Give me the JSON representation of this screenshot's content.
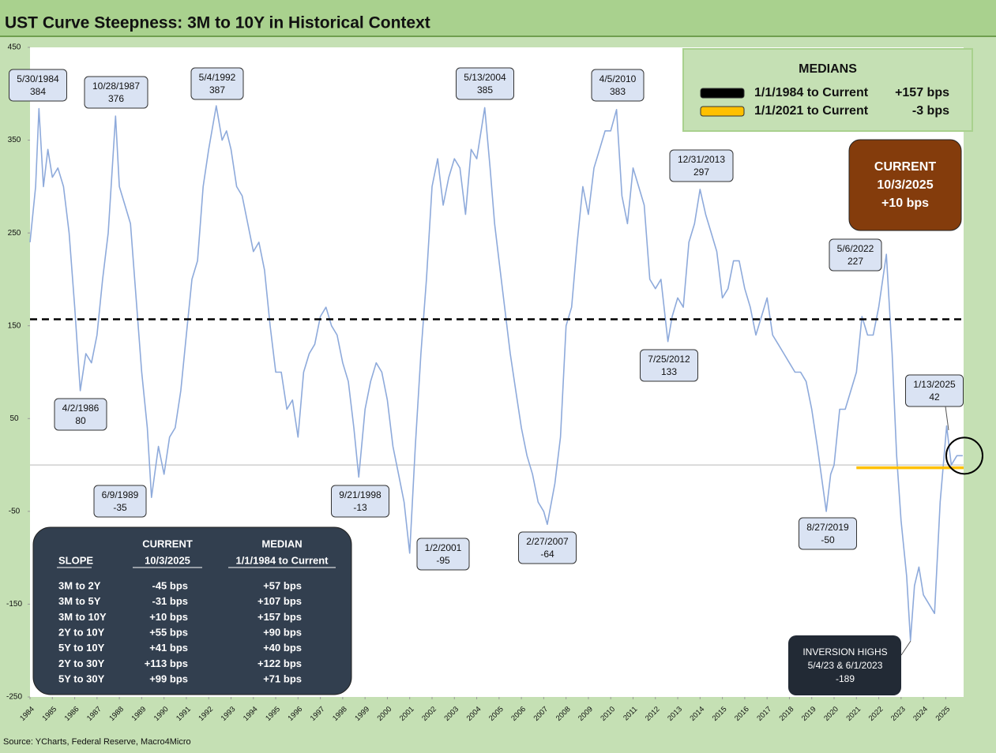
{
  "chart_data": {
    "type": "line",
    "title": "UST Curve Steepness: 3M to 10Y in Historical Context",
    "source": "Source: YCharts, Federal Reserve, Macro4Micro",
    "color": "#8eaadb",
    "ylim": [
      -250,
      450
    ],
    "yticks": [
      450,
      350,
      250,
      150,
      50,
      -50,
      -150,
      -250
    ],
    "xlim": [
      1984,
      2025.8
    ],
    "xticks": [
      1984,
      1985,
      1986,
      1987,
      1988,
      1989,
      1990,
      1991,
      1992,
      1993,
      1994,
      1995,
      1996,
      1997,
      1998,
      1999,
      2000,
      2001,
      2002,
      2003,
      2004,
      2005,
      2006,
      2007,
      2008,
      2009,
      2010,
      2011,
      2012,
      2013,
      2014,
      2015,
      2016,
      2017,
      2018,
      2019,
      2020,
      2021,
      2022,
      2023,
      2024,
      2025
    ],
    "x": [
      1984.0,
      1984.25,
      1984.4,
      1984.6,
      1984.8,
      1985.0,
      1985.25,
      1985.5,
      1985.75,
      1986.0,
      1986.25,
      1986.5,
      1986.75,
      1987.0,
      1987.25,
      1987.5,
      1987.83,
      1988.0,
      1988.25,
      1988.5,
      1988.75,
      1989.0,
      1989.25,
      1989.44,
      1989.75,
      1990.0,
      1990.25,
      1990.5,
      1990.75,
      1991.0,
      1991.25,
      1991.5,
      1991.75,
      1992.0,
      1992.34,
      1992.6,
      1992.8,
      1993.0,
      1993.25,
      1993.5,
      1993.75,
      1994.0,
      1994.25,
      1994.5,
      1994.75,
      1995.0,
      1995.25,
      1995.5,
      1995.75,
      1996.0,
      1996.25,
      1996.5,
      1996.75,
      1997.0,
      1997.25,
      1997.5,
      1997.75,
      1998.0,
      1998.25,
      1998.5,
      1998.72,
      1999.0,
      1999.25,
      1999.5,
      1999.75,
      2000.0,
      2000.25,
      2000.5,
      2000.75,
      2001.0,
      2001.25,
      2001.5,
      2001.75,
      2002.0,
      2002.25,
      2002.5,
      2002.75,
      2003.0,
      2003.25,
      2003.5,
      2003.75,
      2004.0,
      2004.36,
      2004.6,
      2004.8,
      2005.0,
      2005.25,
      2005.5,
      2005.75,
      2006.0,
      2006.25,
      2006.5,
      2006.75,
      2007.0,
      2007.16,
      2007.5,
      2007.75,
      2008.0,
      2008.25,
      2008.5,
      2008.75,
      2009.0,
      2009.25,
      2009.5,
      2009.75,
      2010.0,
      2010.26,
      2010.5,
      2010.75,
      2011.0,
      2011.25,
      2011.5,
      2011.75,
      2012.0,
      2012.25,
      2012.56,
      2012.75,
      2013.0,
      2013.25,
      2013.5,
      2013.75,
      2014.0,
      2014.25,
      2014.5,
      2014.75,
      2015.0,
      2015.25,
      2015.5,
      2015.75,
      2016.0,
      2016.25,
      2016.5,
      2016.75,
      2017.0,
      2017.25,
      2017.5,
      2017.75,
      2018.0,
      2018.25,
      2018.5,
      2018.75,
      2019.0,
      2019.25,
      2019.65,
      2019.85,
      2020.0,
      2020.25,
      2020.5,
      2020.75,
      2021.0,
      2021.25,
      2021.5,
      2021.75,
      2022.0,
      2022.34,
      2022.6,
      2022.8,
      2023.0,
      2023.25,
      2023.42,
      2023.6,
      2023.8,
      2024.0,
      2024.25,
      2024.5,
      2024.75,
      2025.04,
      2025.25,
      2025.5,
      2025.76
    ],
    "values": [
      240,
      300,
      384,
      300,
      340,
      310,
      320,
      300,
      250,
      170,
      80,
      120,
      110,
      140,
      200,
      250,
      376,
      300,
      280,
      260,
      180,
      100,
      40,
      -35,
      20,
      -10,
      30,
      40,
      80,
      140,
      200,
      220,
      300,
      340,
      387,
      350,
      360,
      340,
      300,
      290,
      260,
      230,
      240,
      210,
      150,
      100,
      100,
      60,
      70,
      30,
      100,
      120,
      130,
      160,
      170,
      150,
      140,
      110,
      90,
      40,
      -13,
      60,
      90,
      110,
      100,
      70,
      20,
      -10,
      -40,
      -95,
      20,
      120,
      200,
      300,
      330,
      280,
      310,
      330,
      320,
      270,
      340,
      330,
      385,
      320,
      260,
      220,
      170,
      120,
      80,
      40,
      10,
      -10,
      -40,
      -50,
      -64,
      -20,
      30,
      150,
      170,
      240,
      300,
      270,
      320,
      340,
      360,
      360,
      383,
      290,
      260,
      320,
      300,
      280,
      200,
      190,
      200,
      133,
      160,
      180,
      170,
      240,
      260,
      297,
      270,
      250,
      230,
      180,
      190,
      220,
      220,
      190,
      170,
      140,
      160,
      180,
      140,
      130,
      120,
      110,
      100,
      100,
      90,
      60,
      20,
      -50,
      -10,
      0,
      60,
      60,
      80,
      100,
      160,
      140,
      140,
      170,
      227,
      120,
      10,
      -60,
      -120,
      -189,
      -130,
      -110,
      -140,
      -150,
      -160,
      -40,
      42,
      0,
      10,
      10
    ],
    "annotations": [
      {
        "date": "5/30/1984",
        "value": 384
      },
      {
        "date": "10/28/1987",
        "value": 376
      },
      {
        "date": "5/4/1992",
        "value": 387
      },
      {
        "date": "5/13/2004",
        "value": 385
      },
      {
        "date": "4/5/2010",
        "value": 383
      },
      {
        "date": "12/31/2013",
        "value": 297
      },
      {
        "date": "5/6/2022",
        "value": 227
      },
      {
        "date": "1/13/2025",
        "value": 42
      },
      {
        "date": "4/2/1986",
        "value": 80
      },
      {
        "date": "6/9/1989",
        "value": -35
      },
      {
        "date": "9/21/1998",
        "value": -13
      },
      {
        "date": "1/2/2001",
        "value": -95
      },
      {
        "date": "2/27/2007",
        "value": -64
      },
      {
        "date": "7/25/2012",
        "value": 133
      },
      {
        "date": "8/27/2019",
        "value": -50
      }
    ],
    "medians_title": "MEDIANS",
    "reference_lines": [
      {
        "label": "1/1/1984 to Current",
        "value": 157,
        "value_label": "+157 bps",
        "color": "#000000",
        "start": 1984,
        "dashed": true
      },
      {
        "label": "1/1/2021 to Current",
        "value": -3,
        "value_label": "-3 bps",
        "color": "#ffc000",
        "start": 2021,
        "dashed": false
      }
    ],
    "current": {
      "label": "CURRENT",
      "date": "10/3/2025",
      "value": 10,
      "value_label": "+10 bps"
    },
    "inversion": {
      "title": "INVERSION HIGHS",
      "dates": "5/4/23 & 6/1/2023",
      "value": -189
    }
  },
  "table": {
    "slope_header": "SLOPE",
    "columns": [
      {
        "line1": "CURRENT",
        "line2": "10/3/2025"
      },
      {
        "line1": "MEDIAN",
        "line2": "1/1/1984 to Current"
      }
    ],
    "rows": [
      [
        "3M to 2Y",
        "-45 bps",
        "+57 bps"
      ],
      [
        "3M to 5Y",
        "-31 bps",
        "+107 bps"
      ],
      [
        "3M to 10Y",
        "+10 bps",
        "+157 bps"
      ],
      [
        "2Y to 10Y",
        "+55 bps",
        "+90 bps"
      ],
      [
        "5Y to 10Y",
        "+41 bps",
        "+40 bps"
      ],
      [
        "2Y to 30Y",
        "+113 bps",
        "+122 bps"
      ],
      [
        "5Y to 30Y",
        "+99 bps",
        "+71 bps"
      ]
    ]
  }
}
